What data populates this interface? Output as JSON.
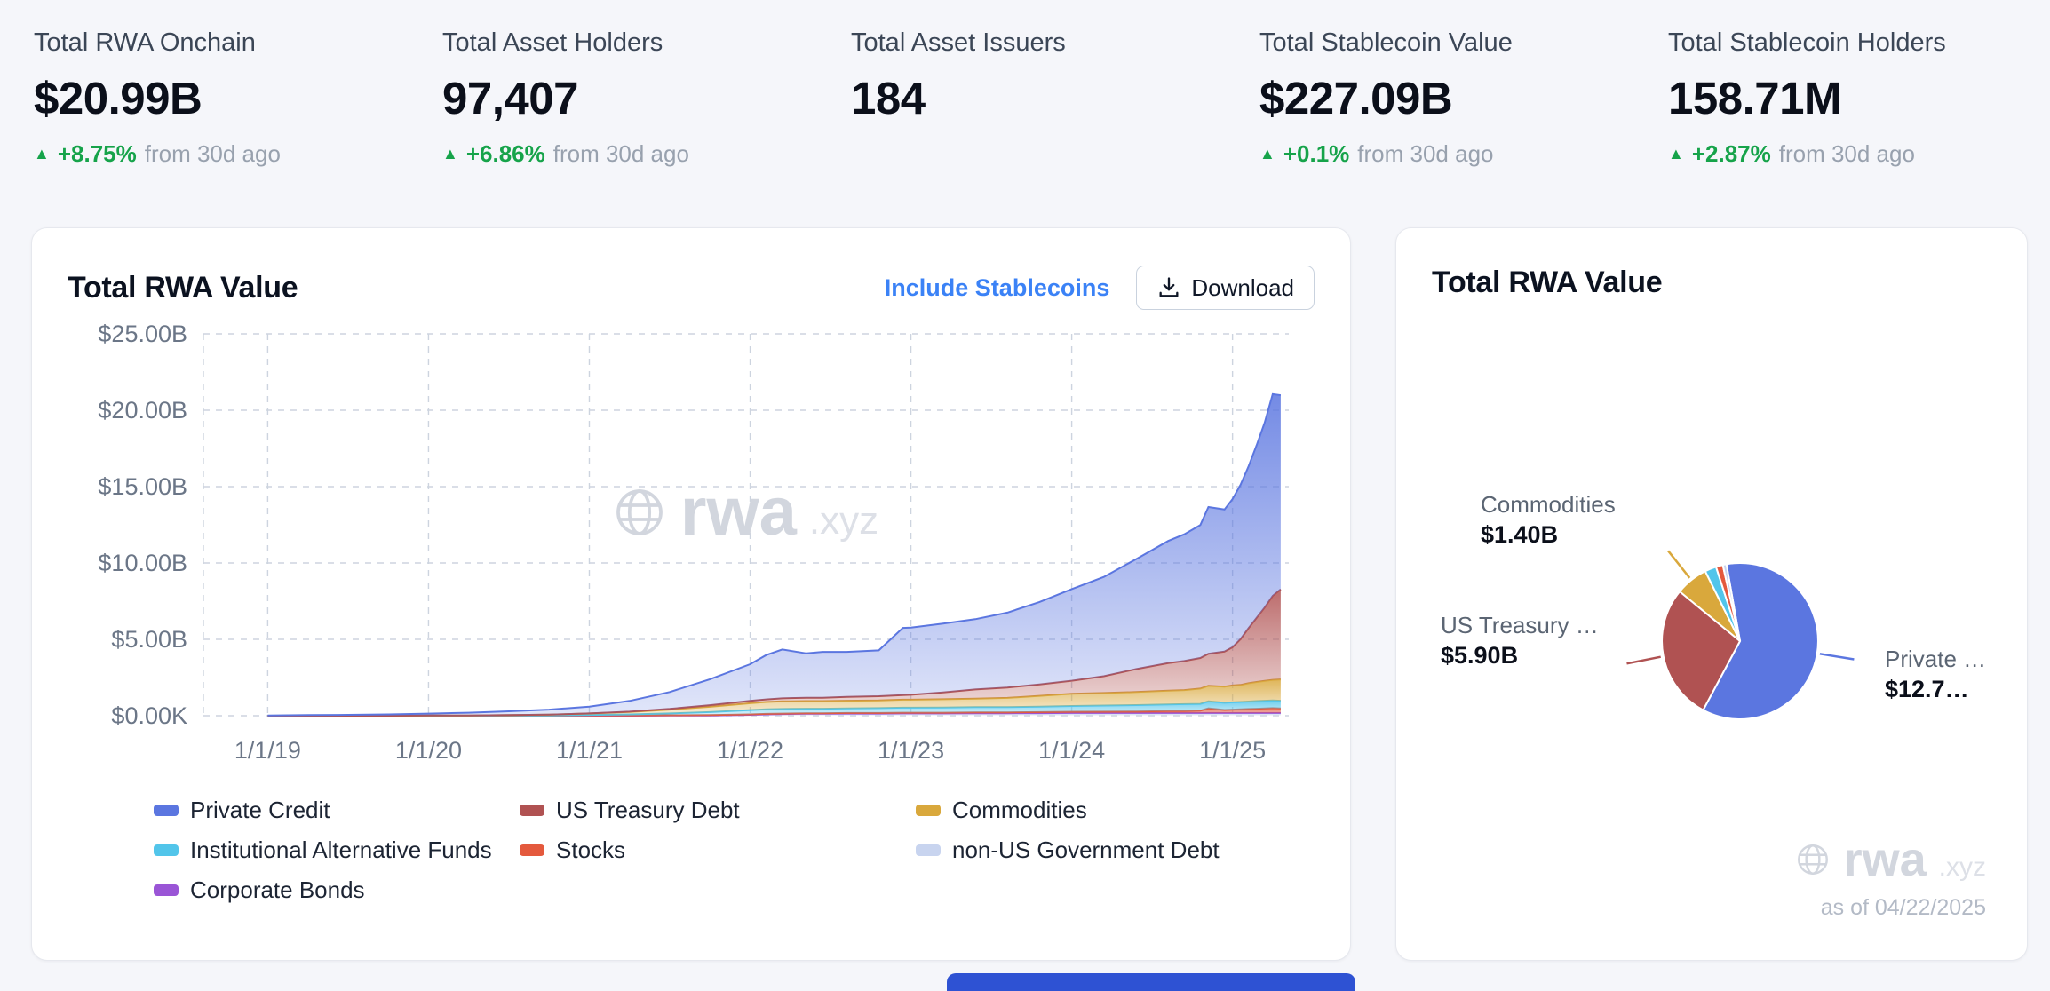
{
  "stats": [
    {
      "label": "Total RWA Onchain",
      "value": "$20.99B",
      "delta": "+8.75%",
      "delta_suffix": "from 30d ago"
    },
    {
      "label": "Total Asset Holders",
      "value": "97,407",
      "delta": "+6.86%",
      "delta_suffix": "from 30d ago"
    },
    {
      "label": "Total Asset Issuers",
      "value": "184"
    },
    {
      "label": "Total Stablecoin Value",
      "value": "$227.09B",
      "delta": "+0.1%",
      "delta_suffix": "from 30d ago"
    },
    {
      "label": "Total Stablecoin Holders",
      "value": "158.71M",
      "delta": "+2.87%",
      "delta_suffix": "from 30d ago"
    }
  ],
  "colors": {
    "positive_green": "#16a34a",
    "link_blue": "#3b82f6",
    "banner_blue": "#2e52d3"
  },
  "area_card": {
    "title": "Total RWA Value",
    "include_link": "Include Stablecoins",
    "download_label": "Download",
    "watermark": {
      "name": "rwa",
      "tld": ".xyz"
    }
  },
  "pie_card": {
    "title": "Total RWA Value",
    "watermark": {
      "name": "rwa",
      "tld": ".xyz"
    },
    "as_of": "as of 04/22/2025",
    "labels": [
      {
        "series": "Commodities",
        "title": "Commodities",
        "value": "$1.40B"
      },
      {
        "series": "US Treasury Debt",
        "title": "US Treasury …",
        "value": "$5.90B"
      },
      {
        "series": "Private Credit",
        "title": "Private …",
        "value": "$12.7…"
      }
    ]
  },
  "chart_data": [
    {
      "type": "area",
      "title": "Total RWA Value",
      "stacked": true,
      "grid": "dashed",
      "x_unit": "decimal_year",
      "xlim": [
        2018.6,
        2025.35
      ],
      "ylim": [
        0,
        25
      ],
      "x_ticks": [
        {
          "v": 2019,
          "label": "1/1/19"
        },
        {
          "v": 2020,
          "label": "1/1/20"
        },
        {
          "v": 2021,
          "label": "1/1/21"
        },
        {
          "v": 2022,
          "label": "1/1/22"
        },
        {
          "v": 2023,
          "label": "1/1/23"
        },
        {
          "v": 2024,
          "label": "1/1/24"
        },
        {
          "v": 2025,
          "label": "1/1/25"
        }
      ],
      "y_ticks": [
        {
          "v": 0,
          "label": "$0.00K"
        },
        {
          "v": 5,
          "label": "$5.00B"
        },
        {
          "v": 10,
          "label": "$10.00B"
        },
        {
          "v": 15,
          "label": "$15.00B"
        },
        {
          "v": 20,
          "label": "$20.00B"
        },
        {
          "v": 25,
          "label": "$25.00B"
        }
      ],
      "x": [
        2019.0,
        2019.25,
        2019.5,
        2019.75,
        2020.0,
        2020.25,
        2020.5,
        2020.75,
        2021.0,
        2021.25,
        2021.5,
        2021.75,
        2022.0,
        2022.1,
        2022.2,
        2022.35,
        2022.45,
        2022.6,
        2022.8,
        2022.95,
        2023.0,
        2023.2,
        2023.4,
        2023.6,
        2023.8,
        2024.0,
        2024.2,
        2024.4,
        2024.6,
        2024.7,
        2024.8,
        2024.85,
        2024.95,
        2025.0,
        2025.05,
        2025.1,
        2025.15,
        2025.2,
        2025.25,
        2025.3
      ],
      "series": [
        {
          "name": "non-US Government Debt",
          "color": "#c8d4ef",
          "values": [
            0,
            0,
            0,
            0,
            0,
            0,
            0,
            0,
            0,
            0,
            0.01,
            0.02,
            0.05,
            0.08,
            0.1,
            0.12,
            0.12,
            0.13,
            0.13,
            0.14,
            0.14,
            0.14,
            0.15,
            0.15,
            0.15,
            0.16,
            0.16,
            0.16,
            0.16,
            0.16,
            0.16,
            0.16,
            0.16,
            0.16,
            0.16,
            0.16,
            0.16,
            0.16,
            0.16,
            0.16
          ]
        },
        {
          "name": "Corporate Bonds",
          "color": "#9a55d6",
          "values": [
            0,
            0,
            0,
            0,
            0,
            0,
            0,
            0,
            0,
            0,
            0,
            0,
            0.01,
            0.01,
            0.01,
            0.01,
            0.01,
            0.01,
            0.01,
            0.01,
            0.01,
            0.01,
            0.01,
            0.01,
            0.02,
            0.02,
            0.02,
            0.02,
            0.02,
            0.02,
            0.02,
            0.02,
            0.02,
            0.02,
            0.02,
            0.02,
            0.02,
            0.02,
            0.02,
            0.02
          ]
        },
        {
          "name": "Stocks",
          "color": "#e4593d",
          "values": [
            0,
            0,
            0,
            0,
            0,
            0,
            0,
            0,
            0.01,
            0.01,
            0.02,
            0.02,
            0.03,
            0.03,
            0.03,
            0.03,
            0.03,
            0.04,
            0.04,
            0.05,
            0.05,
            0.05,
            0.06,
            0.06,
            0.07,
            0.08,
            0.09,
            0.1,
            0.12,
            0.13,
            0.15,
            0.3,
            0.2,
            0.22,
            0.24,
            0.26,
            0.28,
            0.3,
            0.32,
            0.3
          ]
        },
        {
          "name": "Institutional Alternative Funds",
          "color": "#52c5ea",
          "values": [
            0,
            0,
            0,
            0,
            0,
            0,
            0.01,
            0.02,
            0.04,
            0.08,
            0.12,
            0.2,
            0.28,
            0.3,
            0.3,
            0.3,
            0.3,
            0.3,
            0.32,
            0.33,
            0.33,
            0.34,
            0.35,
            0.35,
            0.36,
            0.38,
            0.4,
            0.42,
            0.44,
            0.45,
            0.45,
            0.46,
            0.47,
            0.48,
            0.48,
            0.49,
            0.5,
            0.5,
            0.5,
            0.5
          ]
        },
        {
          "name": "Commodities",
          "color": "#d9a83c",
          "values": [
            0,
            0,
            0,
            0,
            0.01,
            0.02,
            0.03,
            0.05,
            0.1,
            0.16,
            0.25,
            0.35,
            0.45,
            0.48,
            0.5,
            0.5,
            0.5,
            0.5,
            0.5,
            0.52,
            0.52,
            0.54,
            0.55,
            0.6,
            0.7,
            0.8,
            0.82,
            0.85,
            0.9,
            0.92,
            1.0,
            1.02,
            1.05,
            1.1,
            1.12,
            1.2,
            1.25,
            1.3,
            1.35,
            1.4
          ]
        },
        {
          "name": "US Treasury Debt",
          "color": "#b05252",
          "values": [
            0,
            0,
            0,
            0,
            0,
            0,
            0,
            0,
            0,
            0.02,
            0.05,
            0.1,
            0.15,
            0.17,
            0.2,
            0.22,
            0.22,
            0.25,
            0.28,
            0.3,
            0.32,
            0.45,
            0.6,
            0.68,
            0.75,
            0.85,
            1.1,
            1.5,
            1.8,
            1.9,
            2.0,
            2.1,
            2.3,
            2.5,
            3.0,
            3.6,
            4.2,
            4.8,
            5.5,
            5.9
          ]
        },
        {
          "name": "Private Credit",
          "color": "#5b76e0",
          "values": [
            0.02,
            0.04,
            0.06,
            0.09,
            0.13,
            0.18,
            0.25,
            0.33,
            0.45,
            0.7,
            1.1,
            1.7,
            2.4,
            2.9,
            3.2,
            2.9,
            3.0,
            2.95,
            3.0,
            4.4,
            4.4,
            4.5,
            4.6,
            4.9,
            5.4,
            6.0,
            6.5,
            7.2,
            8.0,
            8.3,
            8.7,
            9.6,
            9.3,
            9.7,
            10.1,
            10.6,
            11.3,
            12.1,
            13.2,
            12.7
          ]
        }
      ],
      "legend_order": [
        "Private Credit",
        "US Treasury Debt",
        "Commodities",
        "Institutional Alternative Funds",
        "Stocks",
        "non-US Government Debt",
        "Corporate Bonds"
      ]
    },
    {
      "type": "pie",
      "title": "Total RWA Value",
      "unit": "$B",
      "start_angle_deg": -10,
      "as_of": "as of 04/22/2025",
      "slices": [
        {
          "name": "Private Credit",
          "value": 12.7,
          "color": "#5b76e0"
        },
        {
          "name": "US Treasury Debt",
          "value": 5.9,
          "color": "#b05252"
        },
        {
          "name": "Commodities",
          "value": 1.4,
          "color": "#d9a83c"
        },
        {
          "name": "Institutional Alternative Funds",
          "value": 0.5,
          "color": "#52c5ea"
        },
        {
          "name": "Stocks",
          "value": 0.3,
          "color": "#e4593d"
        },
        {
          "name": "non-US Government Debt",
          "value": 0.16,
          "color": "#c8d4ef"
        }
      ]
    }
  ]
}
